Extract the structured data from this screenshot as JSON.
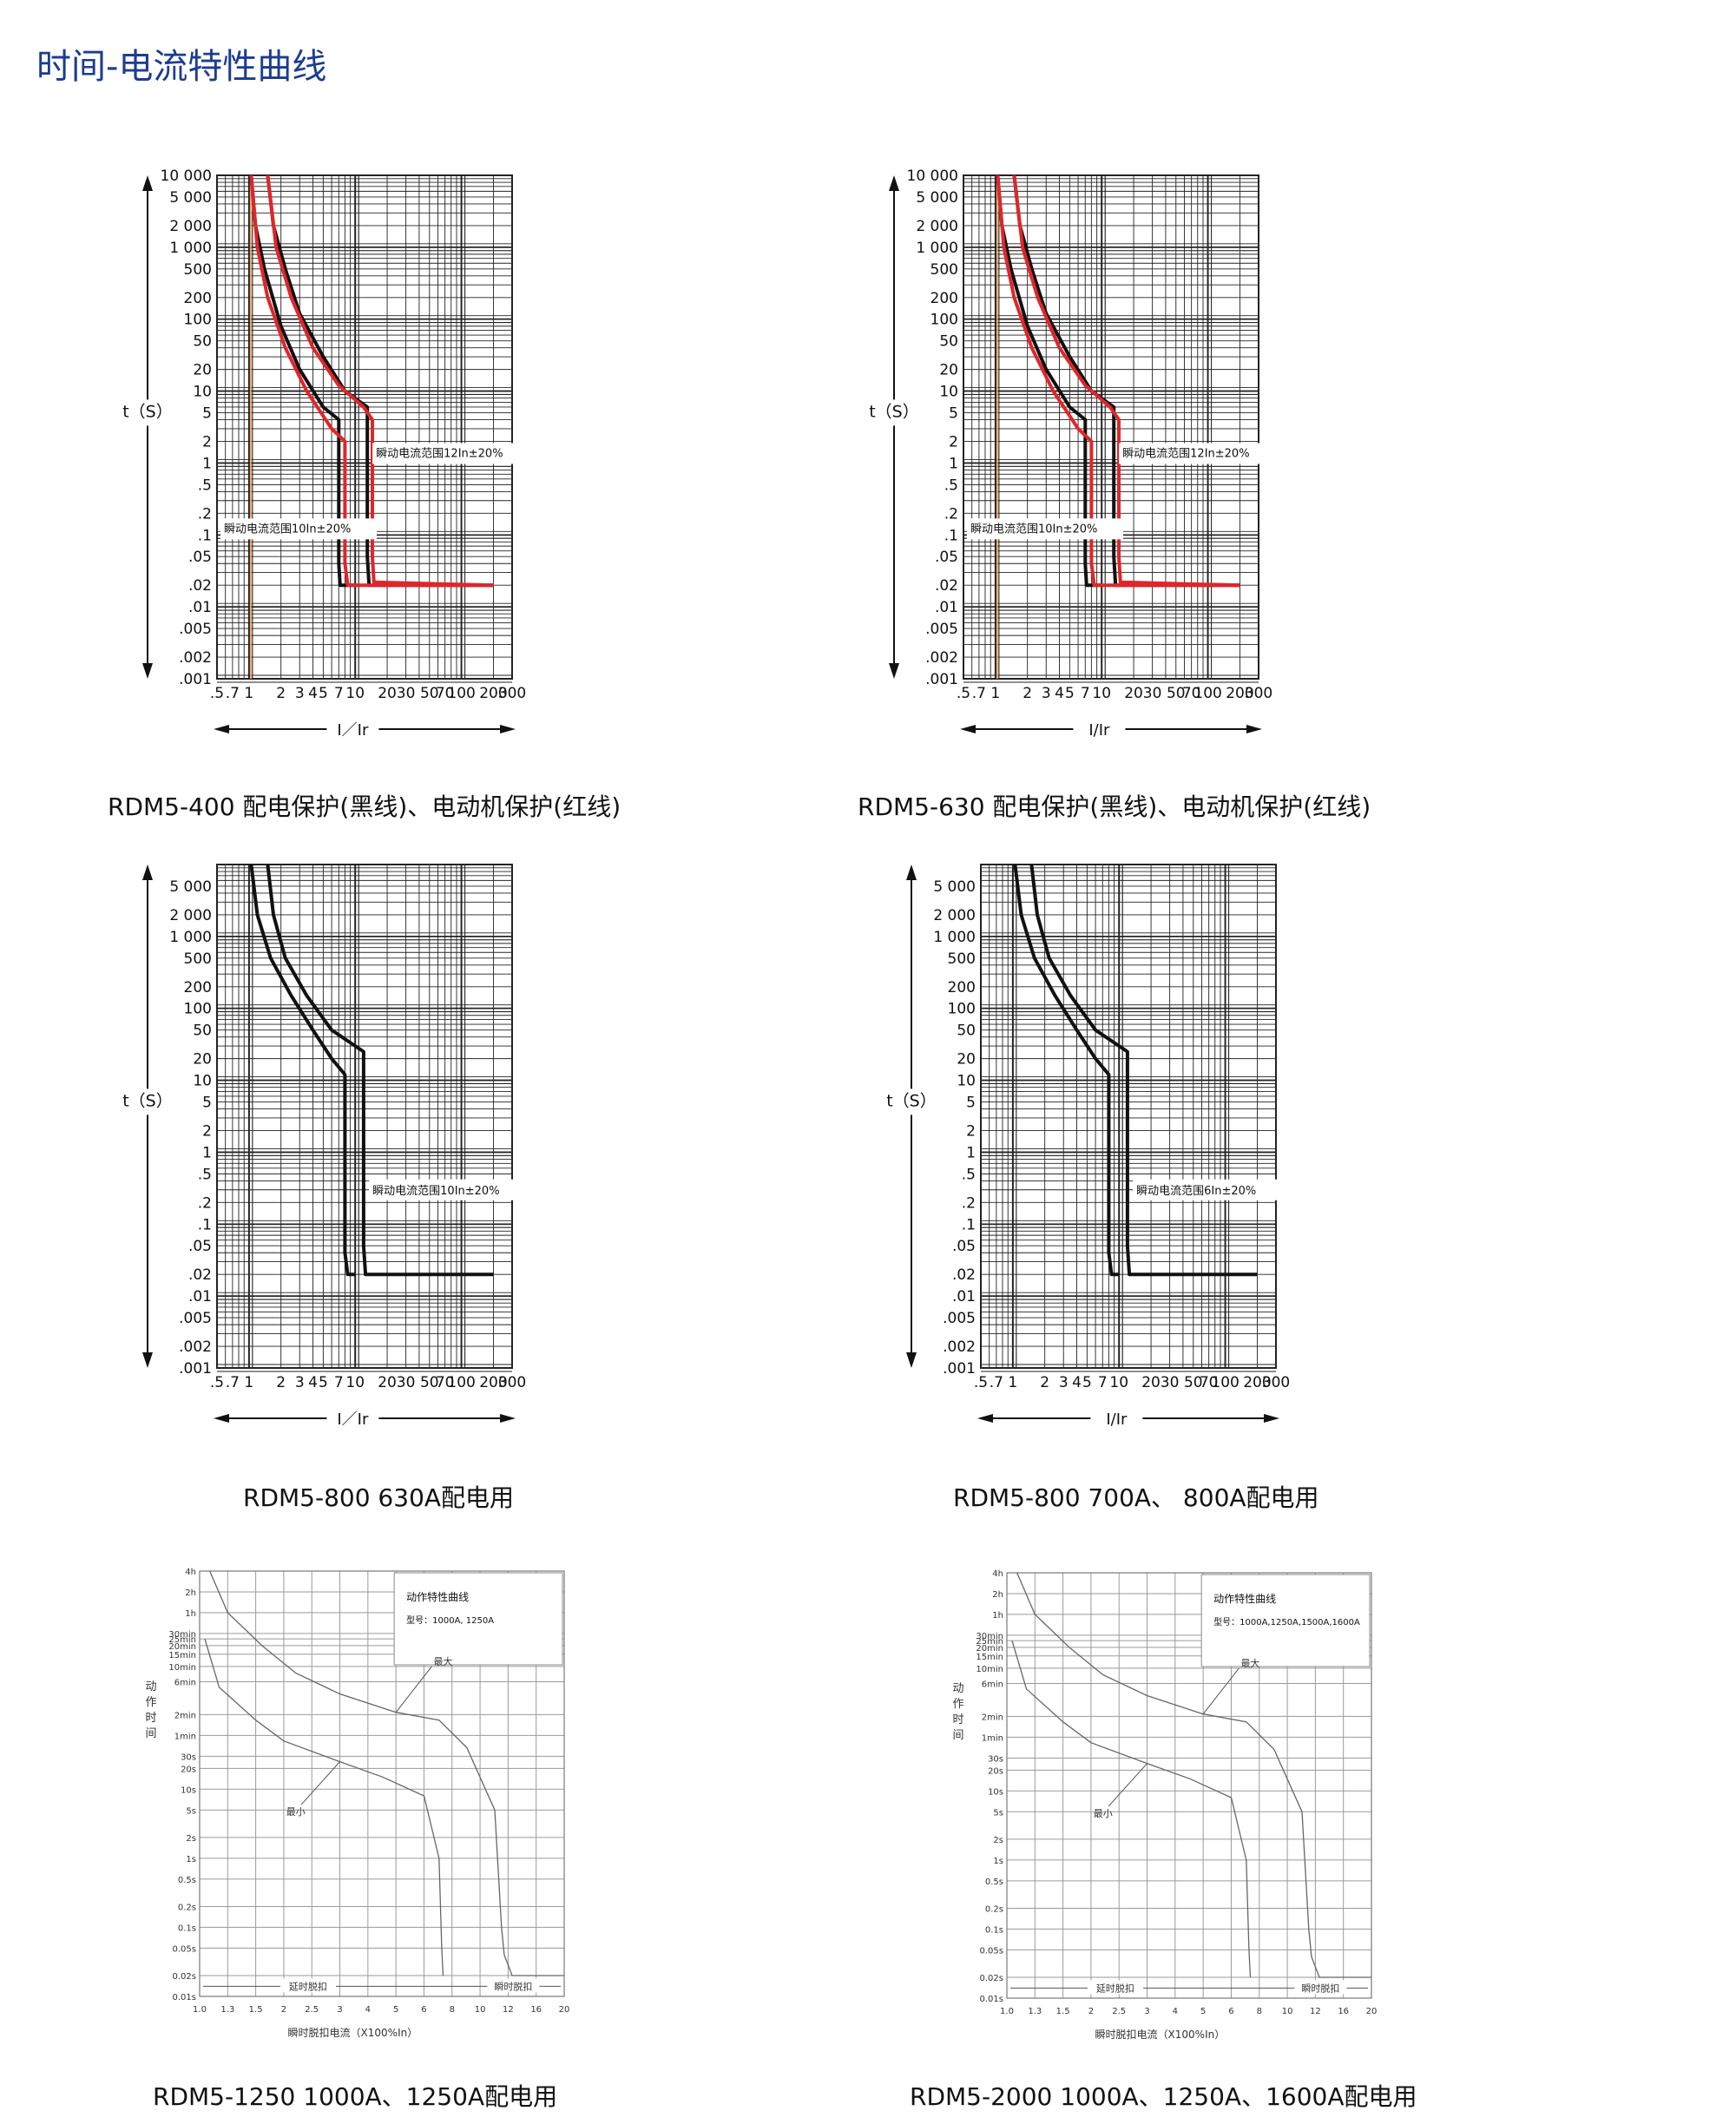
{
  "page_title": "时间-电流特性曲线",
  "captions": [
    "RDM5-400  配电保护(黑线)、电动机保护(红线)",
    "RDM5-630  配电保护(黑线)、电动机保护(红线)",
    "RDM5-800  630A配电用",
    "RDM5-800  700A、 800A配电用",
    "RDM5-1250  1000A、1250A配电用",
    "RDM5-2000  1000A、1250A、1600A配电用"
  ],
  "colors": {
    "title": "#1b3d8f",
    "distribution_curve": "#111111",
    "motor_curve": "#e0262b",
    "marker_line": "#f0a050",
    "grid": "#222222"
  },
  "chart_data": [
    {
      "type": "line",
      "y_axis_label": "t（S）",
      "x_axis_label": "I／Ir",
      "y_scale": "log",
      "x_scale": "log",
      "xlim": [
        0.5,
        300
      ],
      "ylim": [
        0.001,
        10000
      ],
      "y_tick_labels": [
        "10 000",
        "5 000",
        "2 000",
        "1 000",
        "500",
        "200",
        "100",
        "50",
        "20",
        "10",
        "5",
        "2",
        "1",
        ".5",
        ".2",
        ".1",
        ".05",
        ".02",
        ".01",
        ".005",
        ".002",
        ".001"
      ],
      "x_tick_labels": [
        ".5",
        ".7",
        "1",
        "2",
        "3",
        "4",
        "5",
        "7",
        "10",
        "20",
        "30",
        "50",
        "70",
        "100",
        "200",
        "300"
      ],
      "annotations": [
        "瞬动电流范围12In±20%",
        "瞬动电流范围10In±20%"
      ],
      "marker_x": 1,
      "series": [
        {
          "color": "black",
          "x": [
            1.05,
            1.15,
            1.4,
            2,
            3,
            5,
            7,
            7,
            7.2,
            10
          ],
          "y": [
            10000,
            2000,
            500,
            80,
            20,
            6,
            4,
            0.04,
            0.02,
            0.02
          ]
        },
        {
          "color": "black",
          "x": [
            1.5,
            1.7,
            2.2,
            3,
            5,
            8,
            13,
            13,
            13.5,
            20,
            200
          ],
          "y": [
            10000,
            2000,
            500,
            120,
            30,
            10,
            6,
            0.05,
            0.02,
            0.02,
            0.02
          ]
        },
        {
          "color": "red",
          "x": [
            1.05,
            1.2,
            1.5,
            2.2,
            3.5,
            6,
            8,
            8,
            8.5,
            200
          ],
          "y": [
            10000,
            1000,
            200,
            40,
            10,
            3,
            2,
            0.04,
            0.02,
            0.02
          ]
        },
        {
          "color": "red",
          "x": [
            1.5,
            1.8,
            2.5,
            4,
            7,
            12,
            14.5,
            14.5,
            15,
            200
          ],
          "y": [
            10000,
            1000,
            200,
            40,
            12,
            6,
            4,
            0.05,
            0.022,
            0.02
          ]
        }
      ]
    },
    {
      "type": "line",
      "y_axis_label": "t（S）",
      "x_axis_label": "I/Ir",
      "y_scale": "log",
      "x_scale": "log",
      "xlim": [
        0.5,
        300
      ],
      "ylim": [
        0.001,
        10000
      ],
      "y_tick_labels": [
        "10 000",
        "5 000",
        "2 000",
        "1 000",
        "500",
        "200",
        "100",
        "50",
        "20",
        "10",
        "5",
        "2",
        "1",
        ".5",
        ".2",
        ".1",
        ".05",
        ".02",
        ".01",
        ".005",
        ".002",
        ".001"
      ],
      "x_tick_labels": [
        ".5",
        ".7",
        "1",
        "2",
        "3",
        "4",
        "5",
        "7",
        "10",
        "20",
        "30",
        "50",
        "70",
        "100",
        "200",
        "300"
      ],
      "annotations": [
        "瞬动电流范围12In±20%",
        "瞬动电流范围10In±20%"
      ],
      "marker_x": 1,
      "series": [
        {
          "color": "black",
          "x": [
            1.05,
            1.15,
            1.4,
            2,
            3,
            5,
            7,
            7,
            7.2,
            10
          ],
          "y": [
            10000,
            2000,
            500,
            80,
            20,
            6,
            4,
            0.04,
            0.02,
            0.02
          ]
        },
        {
          "color": "black",
          "x": [
            1.5,
            1.7,
            2.2,
            3,
            5,
            8,
            13,
            13,
            13.5,
            20,
            200
          ],
          "y": [
            10000,
            2000,
            500,
            120,
            30,
            10,
            6,
            0.05,
            0.02,
            0.02,
            0.02
          ]
        },
        {
          "color": "red",
          "x": [
            1.05,
            1.2,
            1.5,
            2.2,
            3.5,
            6,
            8,
            8,
            8.5,
            200
          ],
          "y": [
            10000,
            1000,
            200,
            40,
            10,
            3,
            2,
            0.04,
            0.02,
            0.02
          ]
        },
        {
          "color": "red",
          "x": [
            1.5,
            1.8,
            2.5,
            4,
            7,
            12,
            14.5,
            14.5,
            15,
            200
          ],
          "y": [
            10000,
            1000,
            200,
            40,
            12,
            6,
            4,
            0.05,
            0.022,
            0.02
          ]
        }
      ]
    },
    {
      "type": "line",
      "y_axis_label": "t（S）",
      "x_axis_label": "I／Ir",
      "y_scale": "log",
      "x_scale": "log",
      "xlim": [
        0.5,
        300
      ],
      "ylim": [
        0.001,
        10000
      ],
      "y_tick_labels": [
        "5 000",
        "2 000",
        "1 000",
        "500",
        "200",
        "100",
        "50",
        "20",
        "10",
        "5",
        "2",
        "1",
        ".5",
        ".2",
        ".1",
        ".05",
        ".02",
        ".01",
        ".005",
        ".002",
        ".001"
      ],
      "x_tick_labels": [
        ".5",
        ".7",
        "1",
        "2",
        "3",
        "4",
        "5",
        "7",
        "10",
        "20",
        "30",
        "50",
        "70",
        "100",
        "200",
        "300"
      ],
      "annotations": [
        "瞬动电流范围10In±20%"
      ],
      "series": [
        {
          "color": "black",
          "x": [
            1.05,
            1.2,
            1.6,
            2.5,
            4,
            6,
            8,
            8,
            8.5,
            10
          ],
          "y": [
            10000,
            2000,
            500,
            150,
            50,
            20,
            12,
            0.04,
            0.02,
            0.02
          ]
        },
        {
          "color": "black",
          "x": [
            1.5,
            1.7,
            2.2,
            3.5,
            6,
            10,
            12,
            12,
            12.5,
            20,
            200
          ],
          "y": [
            10000,
            2000,
            500,
            150,
            50,
            30,
            25,
            0.05,
            0.02,
            0.02,
            0.02
          ]
        }
      ]
    },
    {
      "type": "line",
      "y_axis_label": "t（S）",
      "x_axis_label": "I/Ir",
      "y_scale": "log",
      "x_scale": "log",
      "xlim": [
        0.5,
        300
      ],
      "ylim": [
        0.001,
        10000
      ],
      "y_tick_labels": [
        "5 000",
        "2 000",
        "1 000",
        "500",
        "200",
        "100",
        "50",
        "20",
        "10",
        "5",
        "2",
        "1",
        ".5",
        ".2",
        ".1",
        ".05",
        ".02",
        ".01",
        ".005",
        ".002",
        ".001"
      ],
      "x_tick_labels": [
        ".5",
        ".7",
        "1",
        "2",
        "3",
        "4",
        "5",
        "7",
        "10",
        "20",
        "30",
        "50",
        "70",
        "100",
        "200",
        "300"
      ],
      "annotations": [
        "瞬动电流范围6In±20%"
      ],
      "series": [
        {
          "color": "black",
          "x": [
            1.05,
            1.2,
            1.6,
            2.5,
            4,
            6,
            8,
            8,
            8.5,
            10
          ],
          "y": [
            10000,
            2000,
            500,
            150,
            50,
            20,
            12,
            0.04,
            0.02,
            0.02
          ]
        },
        {
          "color": "black",
          "x": [
            1.5,
            1.7,
            2.2,
            3.5,
            6,
            10,
            12,
            12,
            12.5,
            20,
            200
          ],
          "y": [
            10000,
            2000,
            500,
            150,
            50,
            30,
            25,
            0.05,
            0.02,
            0.02,
            0.02
          ]
        }
      ]
    },
    {
      "type": "line",
      "title": "动作特性曲线",
      "subtitle": "型号：1000A, 1250A",
      "y_axis_label": "动作时间",
      "x_axis_label": "瞬时脱扣电流（X100%In）",
      "x_tick_labels": [
        "1.0",
        "1.3",
        "1.5",
        "2",
        "2.5",
        "3",
        "4",
        "5",
        "6",
        "8",
        "10",
        "12",
        "16",
        "20"
      ],
      "y_tick_labels": [
        "4h",
        "2h",
        "1h",
        "30min",
        "25min",
        "20min",
        "15min",
        "10min",
        "6min",
        "2min",
        "1min",
        "30s",
        "20s",
        "10s",
        "5s",
        "2s",
        "1s",
        "0.5s",
        "0.2s",
        "0.1s",
        "0.05s",
        "0.02s",
        "0.01s"
      ],
      "annotations": [
        "最大",
        "最小",
        "延时脱扣",
        "瞬时脱扣"
      ],
      "series": [
        {
          "name": "最大",
          "x": [
            1.1,
            1.3,
            1.6,
            2.2,
            3,
            5,
            7,
            9,
            11,
            11.5,
            11.7,
            12.5,
            20
          ],
          "y": [
            14400,
            3600,
            1200,
            480,
            240,
            130,
            100,
            40,
            5,
            0.1,
            0.04,
            0.02,
            0.02
          ]
        },
        {
          "name": "最小",
          "x": [
            1.05,
            1.2,
            1.5,
            2,
            3,
            4.5,
            6,
            7,
            7.2,
            7.3
          ],
          "y": [
            1500,
            300,
            100,
            50,
            25,
            15,
            8,
            1,
            0.05,
            0.02
          ]
        }
      ]
    },
    {
      "type": "line",
      "title": "动作特性曲线",
      "subtitle": "型号：1000A,1250A,1500A,1600A",
      "y_axis_label": "动作时间",
      "x_axis_label": "瞬时脱扣电流（X100%In）",
      "x_tick_labels": [
        "1.0",
        "1.3",
        "1.5",
        "2",
        "2.5",
        "3",
        "4",
        "5",
        "6",
        "8",
        "10",
        "12",
        "16",
        "20"
      ],
      "y_tick_labels": [
        "4h",
        "2h",
        "1h",
        "30min",
        "25min",
        "20min",
        "15min",
        "10min",
        "6min",
        "2min",
        "1min",
        "30s",
        "20s",
        "10s",
        "5s",
        "2s",
        "1s",
        "0.5s",
        "0.2s",
        "0.1s",
        "0.05s",
        "0.02s",
        "0.01s"
      ],
      "annotations": [
        "最大",
        "最小",
        "延时脱扣",
        "瞬时脱扣"
      ],
      "series": [
        {
          "name": "最大",
          "x": [
            1.1,
            1.3,
            1.6,
            2.2,
            3,
            5,
            7,
            9,
            11,
            11.5,
            11.7,
            12.5,
            20
          ],
          "y": [
            14400,
            3600,
            1200,
            480,
            240,
            130,
            100,
            40,
            5,
            0.1,
            0.04,
            0.02,
            0.02
          ]
        },
        {
          "name": "最小",
          "x": [
            1.05,
            1.2,
            1.5,
            2,
            3,
            4.5,
            6,
            7,
            7.2,
            7.3
          ],
          "y": [
            1500,
            300,
            100,
            50,
            25,
            15,
            8,
            1,
            0.05,
            0.02
          ]
        }
      ]
    }
  ]
}
